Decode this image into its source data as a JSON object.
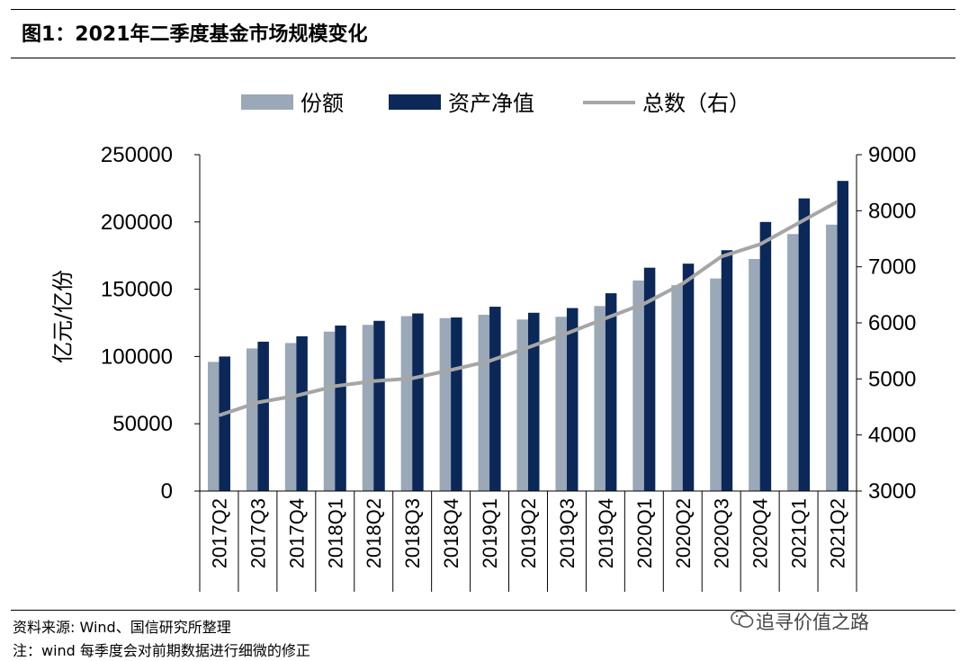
{
  "title": "图1：2021年二季度基金市场规模变化",
  "footer": {
    "source": "资料来源: Wind、国信研究所整理",
    "note": "注：wind 每季度会对前期数据进行细微的修正",
    "watermark": "追寻价值之路"
  },
  "chart_data": {
    "type": "bar",
    "title": "",
    "categories": [
      "2017Q2",
      "2017Q3",
      "2017Q4",
      "2018Q1",
      "2018Q2",
      "2018Q3",
      "2018Q4",
      "2019Q1",
      "2019Q2",
      "2019Q3",
      "2019Q4",
      "2020Q1",
      "2020Q2",
      "2020Q3",
      "2020Q4",
      "2021Q1",
      "2021Q2"
    ],
    "series": [
      {
        "name": "份额",
        "type": "bar",
        "axis": "left",
        "color": "#9aa8b8",
        "values": [
          96000,
          106000,
          110000,
          118500,
          123500,
          130000,
          128500,
          131000,
          127500,
          129500,
          137500,
          156500,
          153000,
          158000,
          172500,
          191000,
          198000
        ]
      },
      {
        "name": "资产净值",
        "type": "bar",
        "axis": "left",
        "color": "#0b2859",
        "values": [
          100000,
          111000,
          115000,
          123000,
          126500,
          132000,
          129000,
          137000,
          132500,
          136000,
          147000,
          166000,
          169000,
          179000,
          200000,
          217500,
          230500
        ]
      },
      {
        "name": "总数（右）",
        "type": "line",
        "axis": "right",
        "color": "#a6a6a6",
        "values": [
          4350,
          4580,
          4700,
          4870,
          4960,
          5010,
          5160,
          5320,
          5560,
          5810,
          6080,
          6340,
          6700,
          7180,
          7400,
          7780,
          8160
        ]
      }
    ],
    "ylabel": "亿元/亿份",
    "ylim": [
      0,
      250000
    ],
    "yticks": [
      "0",
      "50000",
      "100000",
      "150000",
      "200000",
      "250000"
    ],
    "y2lim": [
      3000,
      9000
    ],
    "y2ticks": [
      "3000",
      "4000",
      "5000",
      "6000",
      "7000",
      "8000",
      "9000"
    ],
    "legend": "top-center",
    "grid": false
  }
}
